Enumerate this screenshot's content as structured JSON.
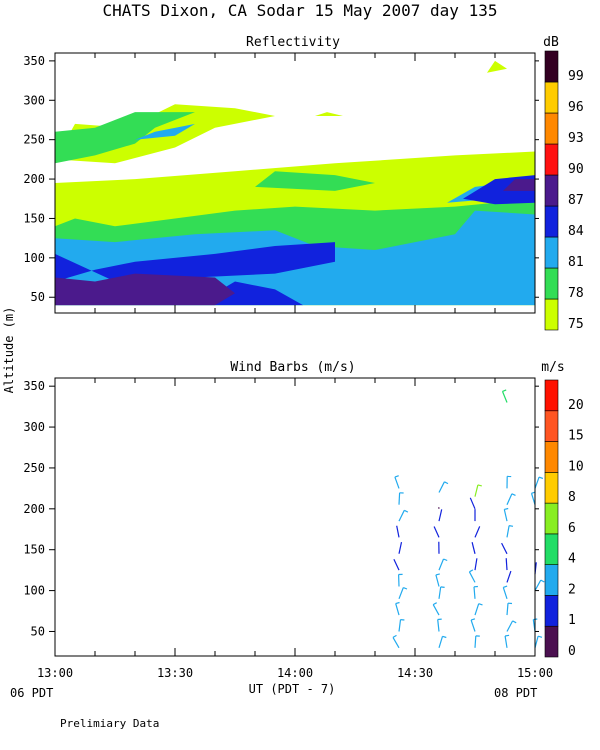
{
  "title": "CHATS Dixon, CA  Sodar  15 May 2007  day 135",
  "y_axis_label": "Altitude (m)",
  "x_axis_label": "UT  (PDT - 7)",
  "left_local_label": "06 PDT",
  "right_local_label": "08 PDT",
  "footer": "Prelimiary Data",
  "chart_data": [
    {
      "type": "heatmap",
      "title": "Reflectivity",
      "unit": "dB",
      "x_ticks": [
        "13:00",
        "13:30",
        "14:00",
        "14:30",
        "15:00"
      ],
      "y_ticks": [
        50,
        100,
        150,
        200,
        250,
        300,
        350
      ],
      "xlim": [
        "13:00",
        "15:00"
      ],
      "ylim": [
        30,
        360
      ],
      "colorbar_labels": [
        75,
        78,
        81,
        84,
        87,
        90,
        93,
        96,
        99
      ],
      "colorbar_colors": [
        "#ccff00",
        "#33dd55",
        "#22aaee",
        "#1122dd",
        "#4b1a8c",
        "#ff1111",
        "#ff8800",
        "#ffcc00",
        "#330022"
      ],
      "levels": [
        {
          "db": 75,
          "color": "#ccff00",
          "polygons": [
            [
              [
                "13:00",
                40
              ],
              [
                "15:00",
                40
              ],
              [
                "15:00",
                235
              ],
              [
                "14:40",
                230
              ],
              [
                "14:10",
                220
              ],
              [
                "13:45",
                210
              ],
              [
                "13:20",
                200
              ],
              [
                "13:00",
                195
              ]
            ],
            [
              [
                "13:00",
                225
              ],
              [
                "13:05",
                270
              ],
              [
                "13:18",
                265
              ],
              [
                "13:30",
                295
              ],
              [
                "13:45",
                290
              ],
              [
                "13:55",
                280
              ],
              [
                "13:40",
                265
              ],
              [
                "13:30",
                240
              ],
              [
                "13:15",
                220
              ]
            ],
            [
              [
                "14:48",
                335
              ],
              [
                "14:50",
                350
              ],
              [
                "14:53",
                340
              ]
            ],
            [
              [
                "14:05",
                280
              ],
              [
                "14:08",
                285
              ],
              [
                "14:12",
                280
              ]
            ]
          ]
        },
        {
          "db": 78,
          "color": "#33dd55",
          "polygons": [
            [
              [
                "13:00",
                40
              ],
              [
                "15:00",
                40
              ],
              [
                "15:00",
                175
              ],
              [
                "14:40",
                165
              ],
              [
                "14:20",
                160
              ],
              [
                "14:00",
                165
              ],
              [
                "13:45",
                160
              ],
              [
                "13:30",
                150
              ],
              [
                "13:15",
                140
              ],
              [
                "13:05",
                150
              ],
              [
                "13:00",
                140
              ]
            ],
            [
              [
                "13:00",
                220
              ],
              [
                "13:00",
                260
              ],
              [
                "13:10",
                265
              ],
              [
                "13:20",
                285
              ],
              [
                "13:35",
                285
              ],
              [
                "13:25",
                265
              ],
              [
                "13:20",
                245
              ],
              [
                "13:10",
                230
              ]
            ],
            [
              [
                "13:50",
                190
              ],
              [
                "13:55",
                210
              ],
              [
                "14:10",
                205
              ],
              [
                "14:20",
                195
              ],
              [
                "14:10",
                185
              ]
            ]
          ]
        },
        {
          "db": 81,
          "color": "#22aaee",
          "polygons": [
            [
              [
                "13:00",
                40
              ],
              [
                "15:00",
                40
              ],
              [
                "15:00",
                155
              ],
              [
                "14:45",
                160
              ],
              [
                "14:40",
                130
              ],
              [
                "14:20",
                110
              ],
              [
                "14:05",
                115
              ],
              [
                "13:55",
                135
              ],
              [
                "13:35",
                130
              ],
              [
                "13:15",
                120
              ],
              [
                "13:00",
                125
              ]
            ],
            [
              [
                "14:38",
                170
              ],
              [
                "14:45",
                190
              ],
              [
                "15:00",
                200
              ],
              [
                "15:00",
                185
              ],
              [
                "14:50",
                175
              ]
            ],
            [
              [
                "13:20",
                250
              ],
              [
                "13:25",
                260
              ],
              [
                "13:35",
                270
              ],
              [
                "13:30",
                255
              ]
            ]
          ]
        },
        {
          "db": 84,
          "color": "#1122dd",
          "polygons": [
            [
              [
                "13:00",
                40
              ],
              [
                "14:02",
                40
              ],
              [
                "13:55",
                60
              ],
              [
                "13:45",
                70
              ],
              [
                "13:40",
                55
              ],
              [
                "13:20",
                50
              ],
              [
                "13:10",
                60
              ],
              [
                "13:00",
                65
              ]
            ],
            [
              [
                "13:00",
                70
              ],
              [
                "13:10",
                85
              ],
              [
                "13:20",
                95
              ],
              [
                "13:40",
                105
              ],
              [
                "13:55",
                115
              ],
              [
                "14:10",
                120
              ],
              [
                "14:10",
                95
              ],
              [
                "13:55",
                80
              ],
              [
                "13:35",
                75
              ],
              [
                "13:15",
                70
              ],
              [
                "13:00",
                105
              ]
            ],
            [
              [
                "14:42",
                175
              ],
              [
                "14:50",
                200
              ],
              [
                "15:00",
                205
              ],
              [
                "15:00",
                170
              ],
              [
                "14:50",
                168
              ]
            ]
          ]
        },
        {
          "db": 87,
          "color": "#4b1a8c",
          "polygons": [
            [
              [
                "13:00",
                40
              ],
              [
                "13:40",
                40
              ],
              [
                "13:45",
                55
              ],
              [
                "13:40",
                75
              ],
              [
                "13:20",
                80
              ],
              [
                "13:10",
                70
              ],
              [
                "13:00",
                75
              ]
            ],
            [
              [
                "14:52",
                185
              ],
              [
                "14:55",
                200
              ],
              [
                "15:00",
                200
              ],
              [
                "15:00",
                185
              ]
            ]
          ]
        }
      ]
    },
    {
      "type": "scatter",
      "title": "Wind Barbs (m/s)",
      "unit": "m/s",
      "x_ticks": [
        "13:00",
        "13:30",
        "14:00",
        "14:30",
        "15:00"
      ],
      "y_ticks": [
        50,
        100,
        150,
        200,
        250,
        300,
        350
      ],
      "xlim": [
        "13:00",
        "15:00"
      ],
      "ylim": [
        20,
        360
      ],
      "colorbar_labels": [
        0,
        1,
        2,
        4,
        6,
        8,
        10,
        15,
        20
      ],
      "colorbar_colors": [
        "#4b1050",
        "#1122dd",
        "#22aaee",
        "#22dd66",
        "#88ee22",
        "#ffcc00",
        "#ff8800",
        "#ff5522",
        "#ff1100"
      ],
      "profile_times": [
        "14:26",
        "14:36",
        "14:45",
        "14:53",
        "15:00"
      ],
      "barbs": [
        {
          "t": "14:26",
          "z": 30,
          "speed": 3
        },
        {
          "t": "14:26",
          "z": 50,
          "speed": 3
        },
        {
          "t": "14:26",
          "z": 70,
          "speed": 3
        },
        {
          "t": "14:26",
          "z": 90,
          "speed": 2
        },
        {
          "t": "14:26",
          "z": 105,
          "speed": 2
        },
        {
          "t": "14:26",
          "z": 125,
          "speed": 1
        },
        {
          "t": "14:26",
          "z": 145,
          "speed": 1
        },
        {
          "t": "14:26",
          "z": 165,
          "speed": 1
        },
        {
          "t": "14:26",
          "z": 185,
          "speed": 2
        },
        {
          "t": "14:26",
          "z": 205,
          "speed": 2
        },
        {
          "t": "14:26",
          "z": 225,
          "speed": 3
        },
        {
          "t": "14:36",
          "z": 30,
          "speed": 3
        },
        {
          "t": "14:36",
          "z": 50,
          "speed": 3
        },
        {
          "t": "14:36",
          "z": 70,
          "speed": 3
        },
        {
          "t": "14:36",
          "z": 90,
          "speed": 2
        },
        {
          "t": "14:36",
          "z": 105,
          "speed": 2
        },
        {
          "t": "14:36",
          "z": 125,
          "speed": 2
        },
        {
          "t": "14:36",
          "z": 145,
          "speed": 1
        },
        {
          "t": "14:36",
          "z": 165,
          "speed": 1
        },
        {
          "t": "14:36",
          "z": 185,
          "speed": 1
        },
        {
          "t": "14:36",
          "z": 200,
          "speed": 0
        },
        {
          "t": "14:36",
          "z": 220,
          "speed": 3
        },
        {
          "t": "14:45",
          "z": 30,
          "speed": 3
        },
        {
          "t": "14:45",
          "z": 50,
          "speed": 3
        },
        {
          "t": "14:45",
          "z": 70,
          "speed": 3
        },
        {
          "t": "14:45",
          "z": 90,
          "speed": 2
        },
        {
          "t": "14:45",
          "z": 110,
          "speed": 2
        },
        {
          "t": "14:45",
          "z": 125,
          "speed": 1
        },
        {
          "t": "14:45",
          "z": 145,
          "speed": 1
        },
        {
          "t": "14:45",
          "z": 165,
          "speed": 1
        },
        {
          "t": "14:45",
          "z": 185,
          "speed": 1
        },
        {
          "t": "14:45",
          "z": 200,
          "speed": 1
        },
        {
          "t": "14:45",
          "z": 215,
          "speed": 6
        },
        {
          "t": "14:53",
          "z": 30,
          "speed": 3
        },
        {
          "t": "14:53",
          "z": 50,
          "speed": 3
        },
        {
          "t": "14:53",
          "z": 70,
          "speed": 3
        },
        {
          "t": "14:53",
          "z": 90,
          "speed": 2
        },
        {
          "t": "14:53",
          "z": 110,
          "speed": 1
        },
        {
          "t": "14:53",
          "z": 125,
          "speed": 1
        },
        {
          "t": "14:53",
          "z": 145,
          "speed": 1
        },
        {
          "t": "14:53",
          "z": 165,
          "speed": 2
        },
        {
          "t": "14:53",
          "z": 185,
          "speed": 2
        },
        {
          "t": "14:53",
          "z": 205,
          "speed": 3
        },
        {
          "t": "14:53",
          "z": 225,
          "speed": 3
        },
        {
          "t": "14:53",
          "z": 330,
          "speed": 5
        },
        {
          "t": "15:00",
          "z": 30,
          "speed": 3
        },
        {
          "t": "15:00",
          "z": 50,
          "speed": 3
        },
        {
          "t": "15:00",
          "z": 100,
          "speed": 2
        },
        {
          "t": "15:00",
          "z": 120,
          "speed": 1
        },
        {
          "t": "15:00",
          "z": 205,
          "speed": 3
        },
        {
          "t": "15:00",
          "z": 225,
          "speed": 3
        }
      ]
    }
  ]
}
